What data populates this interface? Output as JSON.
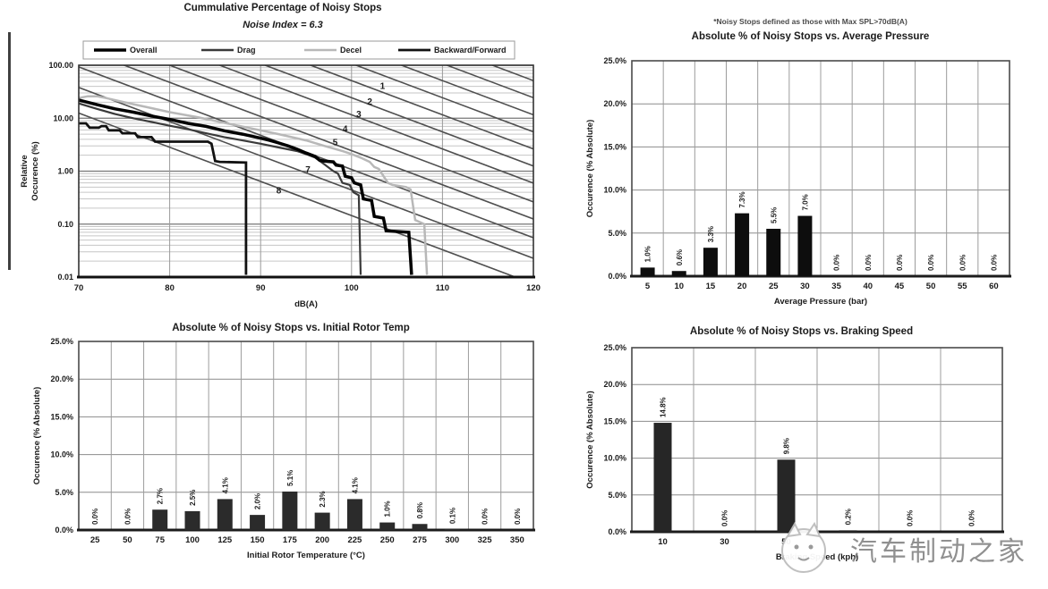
{
  "page": {
    "background": "#ffffff"
  },
  "watermark": {
    "text": "汽车制动之家",
    "color": "#7d7d7d",
    "logo": "cat-logo"
  },
  "chart_data": [
    {
      "id": "cumulative",
      "type": "line",
      "title": "Cummulative Percentage of Noisy Stops",
      "subtitle": "Noise Index = 6.3",
      "xlabel": "dB(A)",
      "ylabel_line1": "Relative",
      "ylabel_line2": "Occurence (%)",
      "y_scale": "log",
      "xlim": [
        70,
        120
      ],
      "ylim": [
        0.01,
        100
      ],
      "x_ticks": [
        "70",
        "80",
        "90",
        "100",
        "110",
        "120"
      ],
      "y_ticks": [
        "100.00",
        "10.00",
        "1.00",
        "0.10",
        "0.01"
      ],
      "grid": true,
      "legend_position": "top",
      "legend": [
        {
          "name": "Overall",
          "color": "#000000",
          "weight": 3.5
        },
        {
          "name": "Drag",
          "color": "#3a3a3a",
          "weight": 2.2
        },
        {
          "name": "Decel",
          "color": "#b8b8b8",
          "weight": 2.5
        },
        {
          "name": "Backward/Forward",
          "color": "#111111",
          "weight": 2.8
        }
      ],
      "reference_lines": {
        "slope_db_per_decade": 15.5,
        "anchors_db_at_100pct": [
          95.5,
          90.5,
          85.5,
          80,
          75,
          69.5,
          63.5,
          56
        ],
        "extra_unnumbered_anchors": [
          100.5,
          105.5,
          110.5,
          115.5
        ],
        "labels": [
          {
            "n": "1",
            "x": 103.4,
            "y": 36
          },
          {
            "n": "2",
            "x": 102.0,
            "y": 18
          },
          {
            "n": "3",
            "x": 100.8,
            "y": 10.5
          },
          {
            "n": "4",
            "x": 99.3,
            "y": 5.5
          },
          {
            "n": "5",
            "x": 98.2,
            "y": 3.1
          },
          {
            "n": "7",
            "x": 95.2,
            "y": 0.95
          },
          {
            "n": "8",
            "x": 92.0,
            "y": 0.38
          }
        ]
      },
      "series": [
        {
          "name": "Decel",
          "points": [
            [
              70,
              24
            ],
            [
              71,
              26
            ],
            [
              72,
              26
            ],
            [
              73,
              24
            ],
            [
              75,
              20
            ],
            [
              78,
              15.5
            ],
            [
              80,
              13
            ],
            [
              83,
              10.5
            ],
            [
              86,
              8.2
            ],
            [
              89,
              6.4
            ],
            [
              92,
              5.0
            ],
            [
              95,
              3.8
            ],
            [
              97,
              3.0
            ],
            [
              99,
              2.4
            ],
            [
              100,
              2.1
            ],
            [
              101,
              1.8
            ],
            [
              102,
              1.5
            ],
            [
              102.5,
              1.2
            ],
            [
              103,
              1.1
            ],
            [
              104,
              0.6
            ],
            [
              104.5,
              0.55
            ],
            [
              106,
              0.5
            ],
            [
              106.5,
              0.45
            ],
            [
              107,
              0.12
            ],
            [
              108,
              0.1
            ],
            [
              108.3,
              0.011
            ]
          ]
        },
        {
          "name": "Drag",
          "points": [
            [
              70,
              19
            ],
            [
              72,
              15
            ],
            [
              74,
              12
            ],
            [
              76,
              10
            ],
            [
              78,
              8.5
            ],
            [
              80,
              7.2
            ],
            [
              82,
              6.2
            ],
            [
              84,
              5.2
            ],
            [
              86,
              4.4
            ],
            [
              88,
              3.8
            ],
            [
              90,
              3.3
            ],
            [
              92,
              2.8
            ],
            [
              94,
              2.4
            ],
            [
              95,
              2.1
            ],
            [
              96,
              1.8
            ],
            [
              97,
              1.35
            ],
            [
              98,
              1.0
            ],
            [
              98.5,
              0.9
            ],
            [
              99,
              0.6
            ],
            [
              99.8,
              0.55
            ],
            [
              100.2,
              0.4
            ],
            [
              100.8,
              0.35
            ],
            [
              101,
              0.011
            ]
          ]
        },
        {
          "name": "Overall",
          "points": [
            [
              70,
              22
            ],
            [
              72,
              18
            ],
            [
              74,
              15
            ],
            [
              76,
              13
            ],
            [
              78,
              11
            ],
            [
              80,
              9.5
            ],
            [
              82,
              8
            ],
            [
              84,
              7
            ],
            [
              86,
              5.8
            ],
            [
              88,
              5
            ],
            [
              90,
              4.2
            ],
            [
              91,
              3.8
            ],
            [
              92,
              3.4
            ],
            [
              93,
              3.0
            ],
            [
              94,
              2.6
            ],
            [
              95,
              2.2
            ],
            [
              96,
              1.9
            ],
            [
              96.5,
              1.6
            ],
            [
              97,
              1.55
            ],
            [
              98,
              1.5
            ],
            [
              98.3,
              1.3
            ],
            [
              99,
              1.25
            ],
            [
              99.3,
              0.8
            ],
            [
              100,
              0.75
            ],
            [
              100.3,
              0.6
            ],
            [
              101,
              0.55
            ],
            [
              101.3,
              0.3
            ],
            [
              102.2,
              0.28
            ],
            [
              102.5,
              0.14
            ],
            [
              103.5,
              0.13
            ],
            [
              103.8,
              0.075
            ],
            [
              106.3,
              0.07
            ],
            [
              106.6,
              0.011
            ]
          ]
        },
        {
          "name": "Backward/Forward",
          "points": [
            [
              70,
              8
            ],
            [
              70.8,
              8
            ],
            [
              71.2,
              6.6
            ],
            [
              72.2,
              6.6
            ],
            [
              72.5,
              7.1
            ],
            [
              73,
              7.1
            ],
            [
              73.3,
              5.9
            ],
            [
              74.5,
              5.9
            ],
            [
              74.8,
              5.2
            ],
            [
              76.2,
              5.2
            ],
            [
              76.5,
              4.4
            ],
            [
              78,
              4.4
            ],
            [
              78.4,
              3.6
            ],
            [
              84.2,
              3.6
            ],
            [
              84.6,
              3.3
            ],
            [
              85,
              1.55
            ],
            [
              85.5,
              1.5
            ],
            [
              88.4,
              1.45
            ],
            [
              88.4,
              0.011
            ]
          ]
        }
      ]
    },
    {
      "id": "pressure",
      "type": "bar",
      "note": "*Noisy Stops defined as those with Max SPL>70dB(A)",
      "title": "Absolute % of Noisy Stops vs. Average Pressure",
      "xlabel": "Average Pressure (bar)",
      "ylabel": "Occurence (% Absolute)",
      "categories": [
        "5",
        "10",
        "15",
        "20",
        "25",
        "30",
        "35",
        "40",
        "45",
        "50",
        "55",
        "60"
      ],
      "values": [
        1.0,
        0.6,
        3.3,
        7.3,
        5.5,
        7.0,
        0,
        0,
        0,
        0,
        0,
        0
      ],
      "labels": [
        "1.0%",
        "0.6%",
        "3.3%",
        "7.3%",
        "5.5%",
        "7.0%",
        "0.0%",
        "0.0%",
        "0.0%",
        "0.0%",
        "0.0%",
        "0.0%"
      ],
      "y_ticks": [
        "25.0%",
        "20.0%",
        "15.0%",
        "10.0%",
        "5.0%",
        "0.0%"
      ],
      "ylim": [
        0,
        25
      ],
      "grid": true,
      "bar_color": "#0d0d0d"
    },
    {
      "id": "rotor",
      "type": "bar",
      "title": "Absolute % of Noisy Stops vs. Initial Rotor Temp",
      "xlabel": "Initial Rotor Temperature (°C)",
      "ylabel": "Occurence (% Absolute)",
      "categories": [
        "25",
        "50",
        "75",
        "100",
        "125",
        "150",
        "175",
        "200",
        "225",
        "250",
        "275",
        "300",
        "325",
        "350"
      ],
      "values": [
        0,
        0,
        2.7,
        2.5,
        4.1,
        2.0,
        5.1,
        2.3,
        4.1,
        1.0,
        0.8,
        0.1,
        0,
        0
      ],
      "labels": [
        "0.0%",
        "0.0%",
        "2.7%",
        "2.5%",
        "4.1%",
        "2.0%",
        "5.1%",
        "2.3%",
        "4.1%",
        "1.0%",
        "0.8%",
        "0.1%",
        "0.0%",
        "0.0%"
      ],
      "y_ticks": [
        "25.0%",
        "20.0%",
        "15.0%",
        "10.0%",
        "5.0%",
        "0.0%"
      ],
      "ylim": [
        0,
        25
      ],
      "grid": true,
      "bar_color": "#2b2b2b"
    },
    {
      "id": "speed",
      "type": "bar",
      "title": "Absolute % of Noisy Stops vs. Braking Speed",
      "xlabel": "Braking Speed (kph)",
      "ylabel": "Occurence (% Absolute)",
      "categories": [
        "10",
        "30",
        "50",
        "",
        "",
        ""
      ],
      "values": [
        14.8,
        0,
        9.8,
        0.2,
        0,
        0
      ],
      "labels": [
        "14.8%",
        "0.0%",
        "9.8%",
        "0.2%",
        "0.0%",
        "0.0%"
      ],
      "y_ticks": [
        "25.0%",
        "20.0%",
        "15.0%",
        "10.0%",
        "5.0%",
        "0.0%"
      ],
      "ylim": [
        0,
        25
      ],
      "grid": true,
      "bar_color": "#262626"
    }
  ]
}
